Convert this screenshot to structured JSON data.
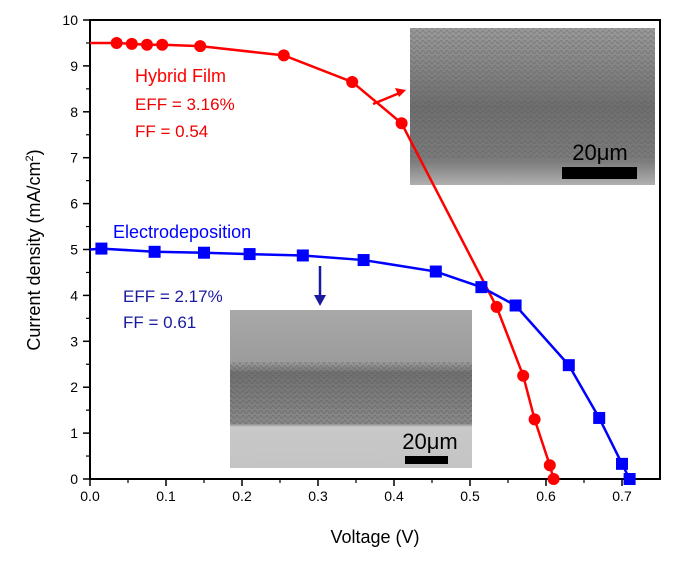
{
  "chart_data": {
    "type": "line",
    "xlabel": "Voltage (V)",
    "ylabel": "Current density (mA/cm2)",
    "xlim": [
      0.0,
      0.75
    ],
    "ylim": [
      0,
      10
    ],
    "xticks": [
      "0.0",
      "0.1",
      "0.2",
      "0.3",
      "0.4",
      "0.5",
      "0.6",
      "0.7"
    ],
    "yticks": [
      "0",
      "1",
      "2",
      "3",
      "4",
      "5",
      "6",
      "7",
      "8",
      "9",
      "10"
    ],
    "series": [
      {
        "name": "Hybrid Film",
        "color": "#ff0000",
        "marker": "circle",
        "x": [
          0.035,
          0.055,
          0.075,
          0.095,
          0.145,
          0.255,
          0.345,
          0.41,
          0.535,
          0.57,
          0.585,
          0.605,
          0.61
        ],
        "y": [
          9.5,
          9.48,
          9.46,
          9.46,
          9.43,
          9.23,
          8.65,
          7.75,
          3.75,
          2.25,
          1.3,
          0.3,
          0.0
        ]
      },
      {
        "name": "Electrodeposition",
        "color": "#0000ff",
        "marker": "square",
        "x": [
          0.015,
          0.085,
          0.15,
          0.21,
          0.28,
          0.36,
          0.455,
          0.515,
          0.56,
          0.63,
          0.67,
          0.7,
          0.71
        ],
        "y": [
          5.02,
          4.95,
          4.93,
          4.9,
          4.87,
          4.77,
          4.52,
          4.18,
          3.78,
          2.48,
          1.33,
          0.33,
          0.0
        ]
      }
    ],
    "annotations": {
      "hybrid_name": "Hybrid Film",
      "hybrid_eff": "EFF = 3.16%",
      "hybrid_ff": "FF = 0.54",
      "electro_name": "Electrodeposition",
      "electro_eff": "EFF = 2.17%",
      "electro_ff": "FF = 0.61",
      "scale_top": "20μm",
      "scale_bottom": "20μm"
    }
  }
}
